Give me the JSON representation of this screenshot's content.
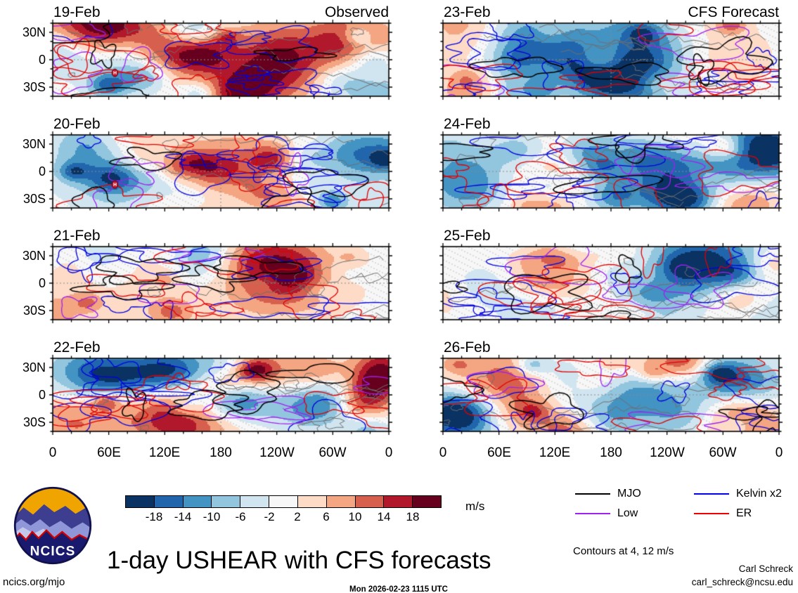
{
  "figure": {
    "title": "1-day USHEAR with CFS forecasts",
    "timestamp": "Mon 2026-02-23 1115 UTC",
    "credit_name": "Carl Schreck",
    "credit_email": "carl_schreck@ncsu.edu",
    "site": "ncics.org/mjo",
    "logo_text": "NCICS"
  },
  "columns": [
    {
      "id": "observed",
      "heading": "Observed"
    },
    {
      "id": "forecast",
      "heading": "CFS Forecast"
    }
  ],
  "panels": [
    {
      "date": "19-Feb",
      "column": 0,
      "row": 0,
      "seed": 140219,
      "cyclone": true
    },
    {
      "date": "20-Feb",
      "column": 0,
      "row": 1,
      "seed": 140220,
      "cyclone": true
    },
    {
      "date": "21-Feb",
      "column": 0,
      "row": 2,
      "seed": 140221,
      "cyclone": false
    },
    {
      "date": "22-Feb",
      "column": 0,
      "row": 3,
      "seed": 140222,
      "cyclone": false
    },
    {
      "date": "23-Feb",
      "column": 1,
      "row": 0,
      "seed": 140223,
      "cyclone": false
    },
    {
      "date": "24-Feb",
      "column": 1,
      "row": 1,
      "seed": 140224,
      "cyclone": false
    },
    {
      "date": "25-Feb",
      "column": 1,
      "row": 2,
      "seed": 140225,
      "cyclone": false
    },
    {
      "date": "26-Feb",
      "column": 1,
      "row": 3,
      "seed": 140226,
      "cyclone": false
    }
  ],
  "axis": {
    "lat_labels": [
      "30N",
      "0",
      "30S"
    ],
    "lon_labels": [
      "0",
      "60E",
      "120E",
      "180",
      "120W",
      "60W",
      "0"
    ],
    "lat_range_deg": [
      -40,
      40
    ],
    "lon_range_deg": [
      0,
      360
    ]
  },
  "colorbar": {
    "unit": "m/s",
    "tick_labels": [
      "-18",
      "-14",
      "-10",
      "-6",
      "-2",
      "2",
      "6",
      "10",
      "14",
      "18"
    ],
    "colors": [
      "#0a3263",
      "#2166ac",
      "#4393c3",
      "#92c5de",
      "#d1e5f0",
      "#f7f7f7",
      "#fddbc7",
      "#f4a582",
      "#d6604d",
      "#b2182b",
      "#67001f"
    ]
  },
  "legend": {
    "entries": [
      {
        "label": "MJO",
        "color": "#000000"
      },
      {
        "label": "Low",
        "color": "#a020f0"
      },
      {
        "label": "Kelvin x2",
        "color": "#0000ee"
      },
      {
        "label": "ER",
        "color": "#ee0000"
      }
    ],
    "note": "Contours at 4, 12 m/s"
  },
  "chart_data": {
    "type": "heatmap",
    "title": "1-day USHEAR with CFS forecasts",
    "subtitle": "Mon 2026-02-23 1115 UTC",
    "panels": [
      {
        "label": "19-Feb",
        "group": "Observed"
      },
      {
        "label": "20-Feb",
        "group": "Observed"
      },
      {
        "label": "21-Feb",
        "group": "Observed"
      },
      {
        "label": "22-Feb",
        "group": "Observed"
      },
      {
        "label": "23-Feb",
        "group": "CFS Forecast"
      },
      {
        "label": "24-Feb",
        "group": "CFS Forecast"
      },
      {
        "label": "25-Feb",
        "group": "CFS Forecast"
      },
      {
        "label": "26-Feb",
        "group": "CFS Forecast"
      }
    ],
    "x_axis": {
      "label": "longitude",
      "tick_labels": [
        "0",
        "60E",
        "120E",
        "180",
        "120W",
        "60W",
        "0"
      ],
      "range_deg": [
        0,
        360
      ],
      "minor_tick_deg": 20
    },
    "y_axis": {
      "label": "latitude",
      "tick_labels": [
        "30N",
        "0",
        "30S"
      ],
      "range_deg": [
        -40,
        40
      ],
      "minor_tick_deg": 10
    },
    "fill_variable": {
      "name": "USHEAR",
      "unit": "m/s",
      "levels": [
        -18,
        -14,
        -10,
        -6,
        -2,
        2,
        6,
        10,
        14,
        18
      ],
      "palette": [
        "#0a3263",
        "#2166ac",
        "#4393c3",
        "#92c5de",
        "#d1e5f0",
        "#f7f7f7",
        "#fddbc7",
        "#f4a582",
        "#d6604d",
        "#b2182b",
        "#67001f"
      ]
    },
    "contour_overlays": [
      {
        "name": "MJO",
        "color": "#000000"
      },
      {
        "name": "Low",
        "color": "#a020f0"
      },
      {
        "name": "Kelvin x2",
        "color": "#0000ee"
      },
      {
        "name": "ER",
        "color": "#ee0000"
      }
    ],
    "contour_levels_ms": [
      4,
      12
    ],
    "grid": "dashed reference lines at equator and 180 longitude",
    "legend_position": "bottom-right"
  }
}
